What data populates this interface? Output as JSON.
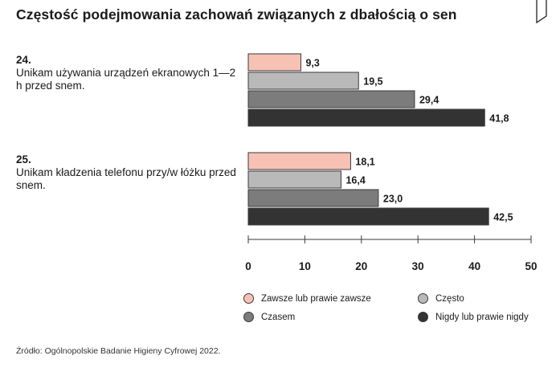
{
  "title": "Częstość podejmowania zachowań związanych z dbałością o sen",
  "questions": [
    {
      "number": "24.",
      "text": "Unikam używania urządzeń ekranowych 1—2 h przed snem."
    },
    {
      "number": "25.",
      "text": "Unikam kładzenia telefonu przy/w łóżku przed snem."
    }
  ],
  "chart_data": {
    "type": "bar",
    "orientation": "horizontal",
    "categories": [
      "24.",
      "25."
    ],
    "series": [
      {
        "name": "Zawsze lub prawie zawsze",
        "color": "#f7c2b4",
        "values": [
          9.3,
          18.1
        ],
        "labels": [
          "9,3",
          "18,1"
        ]
      },
      {
        "name": "Często",
        "color": "#b9b9b9",
        "values": [
          19.5,
          16.4
        ],
        "labels": [
          "19,5",
          "16,4"
        ]
      },
      {
        "name": "Czasem",
        "color": "#7c7c7c",
        "values": [
          29.4,
          23.0
        ],
        "labels": [
          "29,4",
          "23,0"
        ]
      },
      {
        "name": "Nigdy lub prawie nigdy",
        "color": "#333333",
        "values": [
          41.8,
          42.5
        ],
        "labels": [
          "41,8",
          "42,5"
        ]
      }
    ],
    "xlim": [
      0,
      50
    ],
    "xticks": [
      0,
      10,
      20,
      30,
      40,
      50
    ],
    "grid": false,
    "legend_position": "bottom"
  },
  "source": "Źródło: Ogólnopolskie Badanie Higieny Cyfrowej 2022."
}
